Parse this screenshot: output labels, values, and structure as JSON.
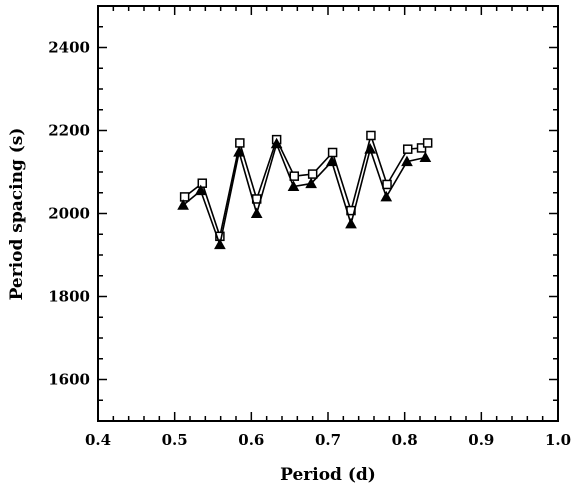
{
  "chart_data": {
    "type": "line",
    "title": "",
    "xlabel": "Period (d)",
    "ylabel": "Period spacing (s)",
    "xlim": [
      0.4,
      1.0
    ],
    "ylim": [
      1500,
      2500
    ],
    "grid": false,
    "x_ticks": [
      0.4,
      0.5,
      0.6,
      0.7,
      0.8,
      0.9,
      1.0
    ],
    "x_tick_labels": [
      "0.4",
      "0.5",
      "0.6",
      "0.7",
      "0.8",
      "0.9",
      "1.0"
    ],
    "y_ticks": [
      1600,
      1800,
      2000,
      2200,
      2400
    ],
    "y_tick_labels": [
      "1600",
      "1800",
      "2000",
      "2200",
      "2400"
    ],
    "series": [
      {
        "marker": "square",
        "color": "#000000",
        "points": [
          [
            0.513,
            2040
          ],
          [
            0.536,
            2073
          ],
          [
            0.559,
            1945
          ],
          [
            0.585,
            2170
          ],
          [
            0.607,
            2035
          ],
          [
            0.633,
            2178
          ],
          [
            0.656,
            2090
          ],
          [
            0.68,
            2095
          ],
          [
            0.706,
            2147
          ],
          [
            0.73,
            2007
          ],
          [
            0.756,
            2188
          ],
          [
            0.777,
            2070
          ],
          [
            0.804,
            2155
          ],
          [
            0.822,
            2158
          ],
          [
            0.83,
            2170
          ]
        ]
      },
      {
        "marker": "triangle",
        "color": "#000000",
        "points": [
          [
            0.511,
            2020
          ],
          [
            0.534,
            2055
          ],
          [
            0.559,
            1925
          ],
          [
            0.584,
            2148
          ],
          [
            0.607,
            2000
          ],
          [
            0.633,
            2168
          ],
          [
            0.655,
            2065
          ],
          [
            0.678,
            2072
          ],
          [
            0.705,
            2125
          ],
          [
            0.73,
            1975
          ],
          [
            0.755,
            2155
          ],
          [
            0.776,
            2040
          ],
          [
            0.803,
            2125
          ],
          [
            0.827,
            2135
          ]
        ]
      }
    ]
  }
}
